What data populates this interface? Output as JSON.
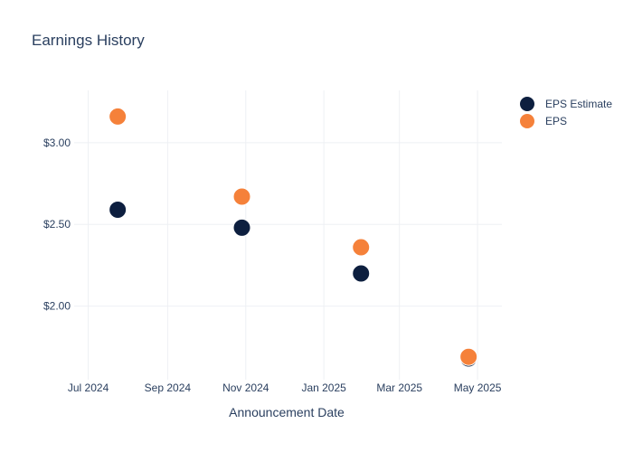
{
  "chart_data": {
    "type": "scatter",
    "title": "Earnings History",
    "xlabel": "Announcement Date",
    "ylabel": "",
    "x_ticks": [
      {
        "label": "Jul 2024",
        "date": "2024-07-01"
      },
      {
        "label": "Sep 2024",
        "date": "2024-09-01"
      },
      {
        "label": "Nov 2024",
        "date": "2024-11-01"
      },
      {
        "label": "Jan 2025",
        "date": "2025-01-01"
      },
      {
        "label": "Mar 2025",
        "date": "2025-03-01"
      },
      {
        "label": "May 2025",
        "date": "2025-05-01"
      }
    ],
    "y_ticks": [
      {
        "label": "$2.00",
        "value": 2.0
      },
      {
        "label": "$2.50",
        "value": 2.5
      },
      {
        "label": "$3.00",
        "value": 3.0
      }
    ],
    "xlim": [
      "2024-06-20",
      "2025-05-20"
    ],
    "ylim": [
      1.55,
      3.32
    ],
    "grid": true,
    "legend_position": "top-right",
    "series": [
      {
        "name": "EPS Estimate",
        "color": "#0d1f3f",
        "points": [
          {
            "x": "2024-07-24",
            "y": 2.59
          },
          {
            "x": "2024-10-29",
            "y": 2.48
          },
          {
            "x": "2025-01-30",
            "y": 2.2
          },
          {
            "x": "2025-04-24",
            "y": 1.68
          }
        ]
      },
      {
        "name": "EPS",
        "color": "#f5813a",
        "points": [
          {
            "x": "2024-07-24",
            "y": 3.16
          },
          {
            "x": "2024-10-29",
            "y": 2.67
          },
          {
            "x": "2025-01-30",
            "y": 2.36
          },
          {
            "x": "2025-04-24",
            "y": 1.69
          }
        ]
      }
    ]
  }
}
